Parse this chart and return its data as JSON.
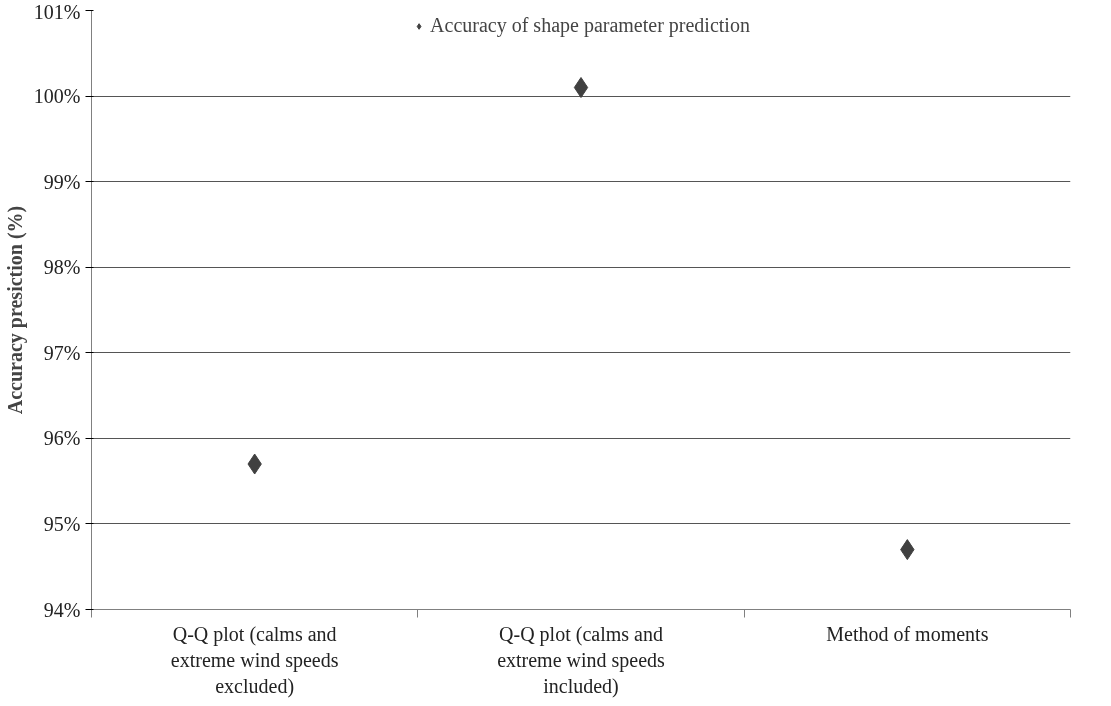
{
  "chart_data": {
    "type": "scatter",
    "ylabel": "Accuracy presiction (%)",
    "categories": [
      "Q-Q plot (calms and extreme wind speeds excluded)",
      "Q-Q plot (calms and extreme wind speeds included)",
      "Method of moments"
    ],
    "series": [
      {
        "name": "Accuracy of shape parameter prediction",
        "color": "#404040",
        "values": [
          95.7,
          100.1,
          94.7
        ]
      }
    ],
    "ylim": [
      94,
      101
    ],
    "yticks": [
      {
        "value": 94,
        "label": "94%"
      },
      {
        "value": 95,
        "label": "95%"
      },
      {
        "value": 96,
        "label": "96%"
      },
      {
        "value": 97,
        "label": "97%"
      },
      {
        "value": 98,
        "label": "98%"
      },
      {
        "value": 99,
        "label": "99%"
      },
      {
        "value": 100,
        "label": "100%"
      },
      {
        "value": 101,
        "label": "101%"
      }
    ],
    "grid": "y",
    "legend": "top",
    "marker": "diamond"
  }
}
